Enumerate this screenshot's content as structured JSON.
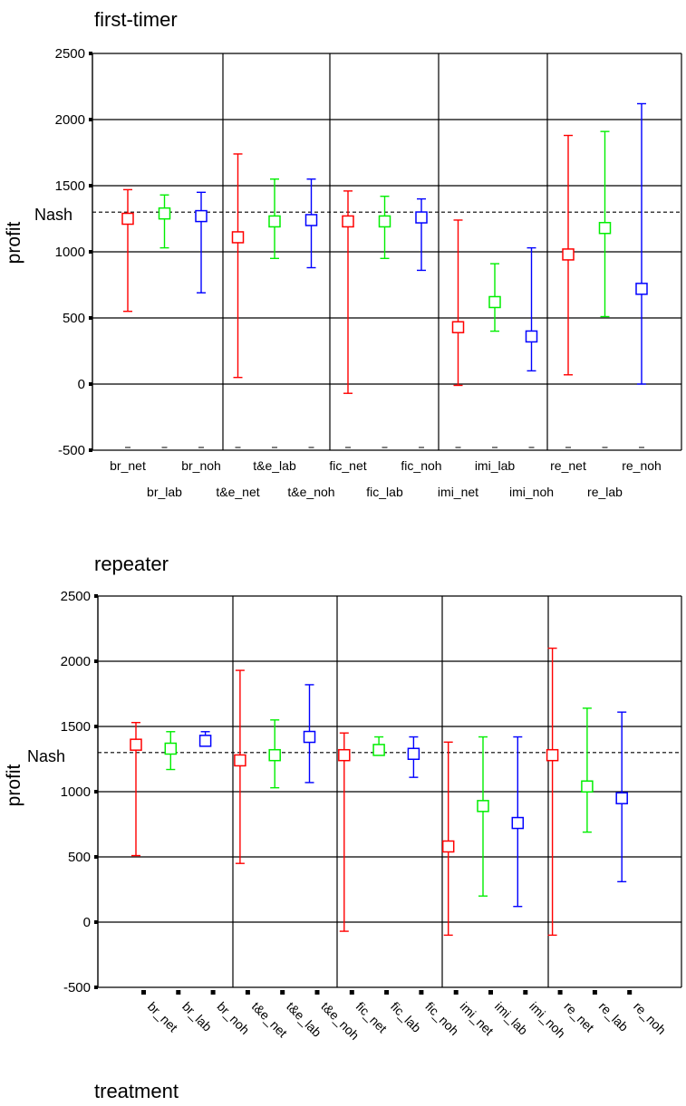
{
  "colors": {
    "net": "#ff0000",
    "lab": "#00ee00",
    "noh": "#0000ff",
    "grid": "#000000"
  },
  "chart_data": [
    {
      "type": "errorbar",
      "title": "first-timer",
      "ylabel": "profit",
      "xlabel": "",
      "ylim": [
        -500,
        2500
      ],
      "yticks": [
        "2500",
        "2000",
        "1500",
        "1000",
        "500",
        "0",
        "-500"
      ],
      "reference_line": {
        "label": "Nash",
        "value": 1300
      },
      "grid": true,
      "categories": [
        "br_net",
        "br_lab",
        "br_noh",
        "t&e_net",
        "t&e_lab",
        "t&e_noh",
        "fic_net",
        "fic_lab",
        "fic_noh",
        "imi_net",
        "imi_lab",
        "imi_noh",
        "re_net",
        "re_lab",
        "re_noh"
      ],
      "series_by_category": [
        "net",
        "lab",
        "noh",
        "net",
        "lab",
        "noh",
        "net",
        "lab",
        "noh",
        "net",
        "lab",
        "noh",
        "net",
        "lab",
        "noh"
      ],
      "means": [
        1250,
        1290,
        1270,
        1110,
        1230,
        1240,
        1230,
        1230,
        1260,
        430,
        620,
        360,
        980,
        1180,
        720
      ],
      "lower": [
        550,
        1030,
        690,
        50,
        950,
        880,
        -70,
        950,
        860,
        -10,
        400,
        100,
        70,
        510,
        0
      ],
      "upper": [
        1470,
        1430,
        1450,
        1740,
        1550,
        1550,
        1460,
        1420,
        1400,
        1240,
        910,
        1030,
        1880,
        1910,
        2120
      ]
    },
    {
      "type": "errorbar",
      "title": "repeater",
      "ylabel": "profit",
      "xlabel": "treatment",
      "ylim": [
        -500,
        2500
      ],
      "yticks": [
        "2500",
        "2000",
        "1500",
        "1000",
        "500",
        "0",
        "-500"
      ],
      "reference_line": {
        "label": "Nash",
        "value": 1300
      },
      "grid": true,
      "categories": [
        "br_net",
        "br_lab",
        "br_noh",
        "t&e_net",
        "t&e_lab",
        "t&e_noh",
        "fic_net",
        "fic_lab",
        "fic_noh",
        "imi_net",
        "imi_lab",
        "imi_noh",
        "re_net",
        "re_lab",
        "re_noh"
      ],
      "series_by_category": [
        "net",
        "lab",
        "noh",
        "net",
        "lab",
        "noh",
        "net",
        "lab",
        "noh",
        "net",
        "lab",
        "noh",
        "net",
        "lab",
        "noh"
      ],
      "means": [
        1360,
        1330,
        1390,
        1240,
        1280,
        1420,
        1280,
        1320,
        1290,
        580,
        890,
        760,
        1280,
        1040,
        950
      ],
      "lower": [
        510,
        1170,
        1350,
        450,
        1030,
        1070,
        -70,
        1280,
        1110,
        -100,
        200,
        120,
        -100,
        690,
        310
      ],
      "upper": [
        1530,
        1460,
        1460,
        1930,
        1550,
        1820,
        1450,
        1420,
        1420,
        1380,
        1420,
        1420,
        2100,
        1640,
        1610
      ]
    }
  ]
}
